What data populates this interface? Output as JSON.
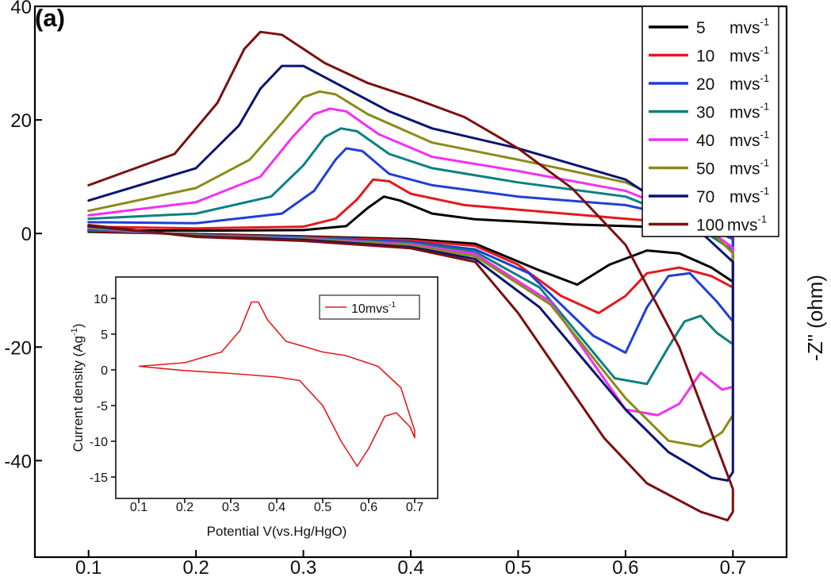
{
  "panel_label": "(a)",
  "right_label": "-Z\" (ohm)",
  "chart_data": [
    {
      "type": "line",
      "title": "",
      "xlabel": "",
      "ylabel": "",
      "xlim": [
        0.05,
        0.75
      ],
      "ylim": [
        -57,
        40
      ],
      "x_ticks": [
        0.1,
        0.2,
        0.3,
        0.4,
        0.5,
        0.6,
        0.7
      ],
      "x_tick_labels": [
        "0.1",
        "0.2",
        "0.3",
        "0.4",
        "0.5",
        "0.6",
        "0.7"
      ],
      "y_ticks": [
        40,
        20,
        0,
        -20,
        -40
      ],
      "y_tick_labels": [
        "40",
        "20",
        "0",
        "-20",
        "-40"
      ],
      "legend_position": "top-right",
      "grid": false,
      "series": [
        {
          "name": "5 mvs-1",
          "legend_main": "5",
          "legend_unit": "mvs",
          "legend_sup": "-1",
          "color": "#000000",
          "anodic": [
            [
              0.1,
              0.6
            ],
            [
              0.2,
              0.5
            ],
            [
              0.3,
              0.6
            ],
            [
              0.34,
              1.3
            ],
            [
              0.36,
              4.5
            ],
            [
              0.375,
              6.5
            ],
            [
              0.39,
              5.8
            ],
            [
              0.42,
              3.5
            ],
            [
              0.46,
              2.5
            ],
            [
              0.55,
              1.6
            ],
            [
              0.65,
              1.0
            ],
            [
              0.7,
              0.5
            ]
          ],
          "cathodic": [
            [
              0.7,
              -8.5
            ],
            [
              0.68,
              -6.0
            ],
            [
              0.65,
              -3.5
            ],
            [
              0.62,
              -3.0
            ],
            [
              0.585,
              -5.5
            ],
            [
              0.555,
              -9.0
            ],
            [
              0.52,
              -6.5
            ],
            [
              0.46,
              -1.8
            ],
            [
              0.4,
              -1.0
            ],
            [
              0.3,
              -0.5
            ],
            [
              0.2,
              -0.1
            ],
            [
              0.1,
              0.3
            ]
          ]
        },
        {
          "name": "10 mvs-1",
          "legend_main": "10",
          "legend_unit": "mvs",
          "legend_sup": "-1",
          "color": "#e31a1c",
          "anodic": [
            [
              0.1,
              1.2
            ],
            [
              0.2,
              0.9
            ],
            [
              0.3,
              1.2
            ],
            [
              0.33,
              2.6
            ],
            [
              0.35,
              6.0
            ],
            [
              0.365,
              9.5
            ],
            [
              0.38,
              9.2
            ],
            [
              0.4,
              7.0
            ],
            [
              0.45,
              5.0
            ],
            [
              0.55,
              3.4
            ],
            [
              0.65,
              1.8
            ],
            [
              0.7,
              0.0
            ]
          ],
          "cathodic": [
            [
              0.7,
              -9.5
            ],
            [
              0.68,
              -7.5
            ],
            [
              0.65,
              -6.0
            ],
            [
              0.62,
              -7.0
            ],
            [
              0.6,
              -11.0
            ],
            [
              0.575,
              -14.0
            ],
            [
              0.54,
              -11.0
            ],
            [
              0.5,
              -5.5
            ],
            [
              0.46,
              -2.2
            ],
            [
              0.4,
              -1.2
            ],
            [
              0.3,
              -0.6
            ],
            [
              0.2,
              -0.2
            ],
            [
              0.1,
              0.5
            ]
          ]
        },
        {
          "name": "20 mvs-1",
          "legend_main": "20",
          "legend_unit": "mvs",
          "legend_sup": "-1",
          "color": "#1f3fd6",
          "anodic": [
            [
              0.1,
              2.0
            ],
            [
              0.2,
              1.8
            ],
            [
              0.28,
              3.5
            ],
            [
              0.31,
              7.5
            ],
            [
              0.33,
              13.0
            ],
            [
              0.34,
              15.0
            ],
            [
              0.355,
              14.5
            ],
            [
              0.38,
              10.5
            ],
            [
              0.42,
              8.5
            ],
            [
              0.5,
              6.5
            ],
            [
              0.6,
              5.0
            ],
            [
              0.66,
              2.5
            ],
            [
              0.7,
              -1.0
            ]
          ],
          "cathodic": [
            [
              0.7,
              -15.5
            ],
            [
              0.685,
              -12.0
            ],
            [
              0.66,
              -7.0
            ],
            [
              0.64,
              -7.5
            ],
            [
              0.62,
              -13.0
            ],
            [
              0.6,
              -21.0
            ],
            [
              0.57,
              -18.0
            ],
            [
              0.51,
              -7.0
            ],
            [
              0.46,
              -2.8
            ],
            [
              0.4,
              -1.5
            ],
            [
              0.3,
              -0.7
            ],
            [
              0.2,
              -0.3
            ],
            [
              0.1,
              0.7
            ]
          ]
        },
        {
          "name": "30 mvs-1",
          "legend_main": "30",
          "legend_unit": "mvs",
          "legend_sup": "-1",
          "color": "#0e8080",
          "anodic": [
            [
              0.1,
              2.6
            ],
            [
              0.2,
              3.5
            ],
            [
              0.27,
              6.5
            ],
            [
              0.3,
              12.0
            ],
            [
              0.32,
              17.0
            ],
            [
              0.335,
              18.5
            ],
            [
              0.35,
              18.0
            ],
            [
              0.38,
              14.0
            ],
            [
              0.42,
              11.5
            ],
            [
              0.5,
              9.0
            ],
            [
              0.6,
              6.5
            ],
            [
              0.66,
              2.0
            ],
            [
              0.7,
              -3.0
            ]
          ],
          "cathodic": [
            [
              0.7,
              -19.5
            ],
            [
              0.685,
              -17.5
            ],
            [
              0.67,
              -14.5
            ],
            [
              0.655,
              -15.5
            ],
            [
              0.64,
              -20.0
            ],
            [
              0.62,
              -26.5
            ],
            [
              0.59,
              -25.5
            ],
            [
              0.52,
              -9.5
            ],
            [
              0.46,
              -3.2
            ],
            [
              0.4,
              -1.7
            ],
            [
              0.3,
              -0.8
            ],
            [
              0.2,
              -0.3
            ],
            [
              0.1,
              0.8
            ]
          ]
        },
        {
          "name": "40 mvs-1",
          "legend_main": "40",
          "legend_unit": "mvs",
          "legend_sup": "-1",
          "color": "#f230f2",
          "anodic": [
            [
              0.1,
              3.2
            ],
            [
              0.2,
              5.5
            ],
            [
              0.26,
              10.0
            ],
            [
              0.29,
              17.0
            ],
            [
              0.31,
              21.0
            ],
            [
              0.325,
              22.0
            ],
            [
              0.34,
              21.5
            ],
            [
              0.37,
              17.5
            ],
            [
              0.42,
              13.5
            ],
            [
              0.5,
              11.0
            ],
            [
              0.6,
              7.5
            ],
            [
              0.66,
              3.0
            ],
            [
              0.7,
              -2.5
            ]
          ],
          "cathodic": [
            [
              0.7,
              -27.0
            ],
            [
              0.69,
              -27.5
            ],
            [
              0.67,
              -24.5
            ],
            [
              0.65,
              -30.0
            ],
            [
              0.63,
              -32.0
            ],
            [
              0.6,
              -31.0
            ],
            [
              0.53,
              -12.0
            ],
            [
              0.46,
              -3.6
            ],
            [
              0.4,
              -1.9
            ],
            [
              0.3,
              -0.9
            ],
            [
              0.2,
              -0.4
            ],
            [
              0.1,
              1.0
            ]
          ]
        },
        {
          "name": "50 mvs-1",
          "legend_main": "50",
          "legend_unit": "mvs",
          "legend_sup": "-1",
          "color": "#8a8a1a",
          "anodic": [
            [
              0.1,
              4.0
            ],
            [
              0.2,
              8.0
            ],
            [
              0.25,
              13.0
            ],
            [
              0.28,
              19.5
            ],
            [
              0.3,
              24.0
            ],
            [
              0.315,
              25.0
            ],
            [
              0.33,
              24.5
            ],
            [
              0.36,
              21.0
            ],
            [
              0.42,
              16.0
            ],
            [
              0.5,
              13.0
            ],
            [
              0.6,
              9.0
            ],
            [
              0.66,
              4.0
            ],
            [
              0.7,
              -3.5
            ]
          ],
          "cathodic": [
            [
              0.7,
              -32.0
            ],
            [
              0.69,
              -35.0
            ],
            [
              0.67,
              -37.5
            ],
            [
              0.64,
              -36.5
            ],
            [
              0.6,
              -29.0
            ],
            [
              0.53,
              -12.5
            ],
            [
              0.46,
              -4.0
            ],
            [
              0.4,
              -2.1
            ],
            [
              0.3,
              -1.0
            ],
            [
              0.2,
              -0.4
            ],
            [
              0.1,
              1.1
            ]
          ]
        },
        {
          "name": "70 mvs-1",
          "legend_main": "70",
          "legend_unit": "mvs",
          "legend_sup": "-1",
          "color": "#0b1470",
          "anodic": [
            [
              0.1,
              5.8
            ],
            [
              0.2,
              11.5
            ],
            [
              0.24,
              19.0
            ],
            [
              0.26,
              25.5
            ],
            [
              0.28,
              29.5
            ],
            [
              0.3,
              29.5
            ],
            [
              0.33,
              26.5
            ],
            [
              0.38,
              21.5
            ],
            [
              0.42,
              18.5
            ],
            [
              0.5,
              15.0
            ],
            [
              0.6,
              9.5
            ],
            [
              0.66,
              2.0
            ],
            [
              0.7,
              -5.0
            ]
          ],
          "cathodic": [
            [
              0.7,
              -42.0
            ],
            [
              0.695,
              -43.5
            ],
            [
              0.68,
              -43.0
            ],
            [
              0.64,
              -38.5
            ],
            [
              0.6,
              -31.0
            ],
            [
              0.56,
              -22.0
            ],
            [
              0.52,
              -13.0
            ],
            [
              0.46,
              -4.5
            ],
            [
              0.4,
              -2.4
            ],
            [
              0.3,
              -1.1
            ],
            [
              0.2,
              -0.5
            ],
            [
              0.1,
              1.3
            ]
          ]
        },
        {
          "name": "100mvs-1",
          "legend_main": "100",
          "legend_unit": "mvs",
          "legend_sup": "-1",
          "color": "#7a1010",
          "anodic": [
            [
              0.1,
              8.5
            ],
            [
              0.18,
              14.0
            ],
            [
              0.22,
              23.0
            ],
            [
              0.245,
              32.5
            ],
            [
              0.26,
              35.5
            ],
            [
              0.28,
              35.0
            ],
            [
              0.32,
              30.0
            ],
            [
              0.36,
              26.5
            ],
            [
              0.4,
              24.0
            ],
            [
              0.45,
              20.5
            ],
            [
              0.5,
              15.0
            ],
            [
              0.55,
              8.0
            ],
            [
              0.6,
              -2.0
            ],
            [
              0.65,
              -20.0
            ],
            [
              0.7,
              -45.0
            ]
          ],
          "cathodic": [
            [
              0.7,
              -49.0
            ],
            [
              0.695,
              -50.5
            ],
            [
              0.67,
              -49.0
            ],
            [
              0.62,
              -44.0
            ],
            [
              0.58,
              -36.0
            ],
            [
              0.54,
              -25.0
            ],
            [
              0.5,
              -14.0
            ],
            [
              0.46,
              -5.0
            ],
            [
              0.4,
              -2.6
            ],
            [
              0.3,
              -1.3
            ],
            [
              0.2,
              -0.6
            ],
            [
              0.1,
              1.5
            ]
          ]
        }
      ]
    },
    {
      "type": "line",
      "title": "",
      "xlabel": "Potential V(vs.Hg/HgO)",
      "ylabel_main": "Current density (Ag",
      "ylabel_sup": "-1",
      "ylabel_close": ")",
      "xlim": [
        0.05,
        0.75
      ],
      "ylim": [
        -18,
        13
      ],
      "x_ticks": [
        0.1,
        0.2,
        0.3,
        0.4,
        0.5,
        0.6,
        0.7
      ],
      "x_tick_labels": [
        "0.1",
        "0.2",
        "0.3",
        "0.4",
        "0.5",
        "0.6",
        "0.7"
      ],
      "y_ticks": [
        10,
        5,
        0,
        -5,
        -10,
        -15
      ],
      "y_tick_labels": [
        "10",
        "5",
        "0",
        "-5",
        "-10",
        "-15"
      ],
      "legend_position": "top-right",
      "grid": false,
      "series": [
        {
          "name": "10mvs-1",
          "legend_main": "10mvs",
          "legend_sup": "-1",
          "color": "#e31a1c",
          "anodic": [
            [
              0.1,
              0.5
            ],
            [
              0.2,
              1.0
            ],
            [
              0.28,
              2.5
            ],
            [
              0.32,
              5.5
            ],
            [
              0.345,
              9.5
            ],
            [
              0.36,
              9.5
            ],
            [
              0.38,
              7.0
            ],
            [
              0.42,
              4.0
            ],
            [
              0.5,
              2.5
            ],
            [
              0.55,
              2.0
            ],
            [
              0.62,
              0.5
            ],
            [
              0.67,
              -2.5
            ],
            [
              0.7,
              -8.5
            ]
          ],
          "cathodic": [
            [
              0.7,
              -9.5
            ],
            [
              0.69,
              -8.0
            ],
            [
              0.66,
              -6.0
            ],
            [
              0.635,
              -6.5
            ],
            [
              0.6,
              -11.0
            ],
            [
              0.575,
              -13.5
            ],
            [
              0.54,
              -10.0
            ],
            [
              0.5,
              -5.0
            ],
            [
              0.45,
              -1.5
            ],
            [
              0.4,
              -1.0
            ],
            [
              0.3,
              -0.5
            ],
            [
              0.2,
              -0.1
            ],
            [
              0.1,
              0.5
            ]
          ]
        }
      ]
    }
  ]
}
